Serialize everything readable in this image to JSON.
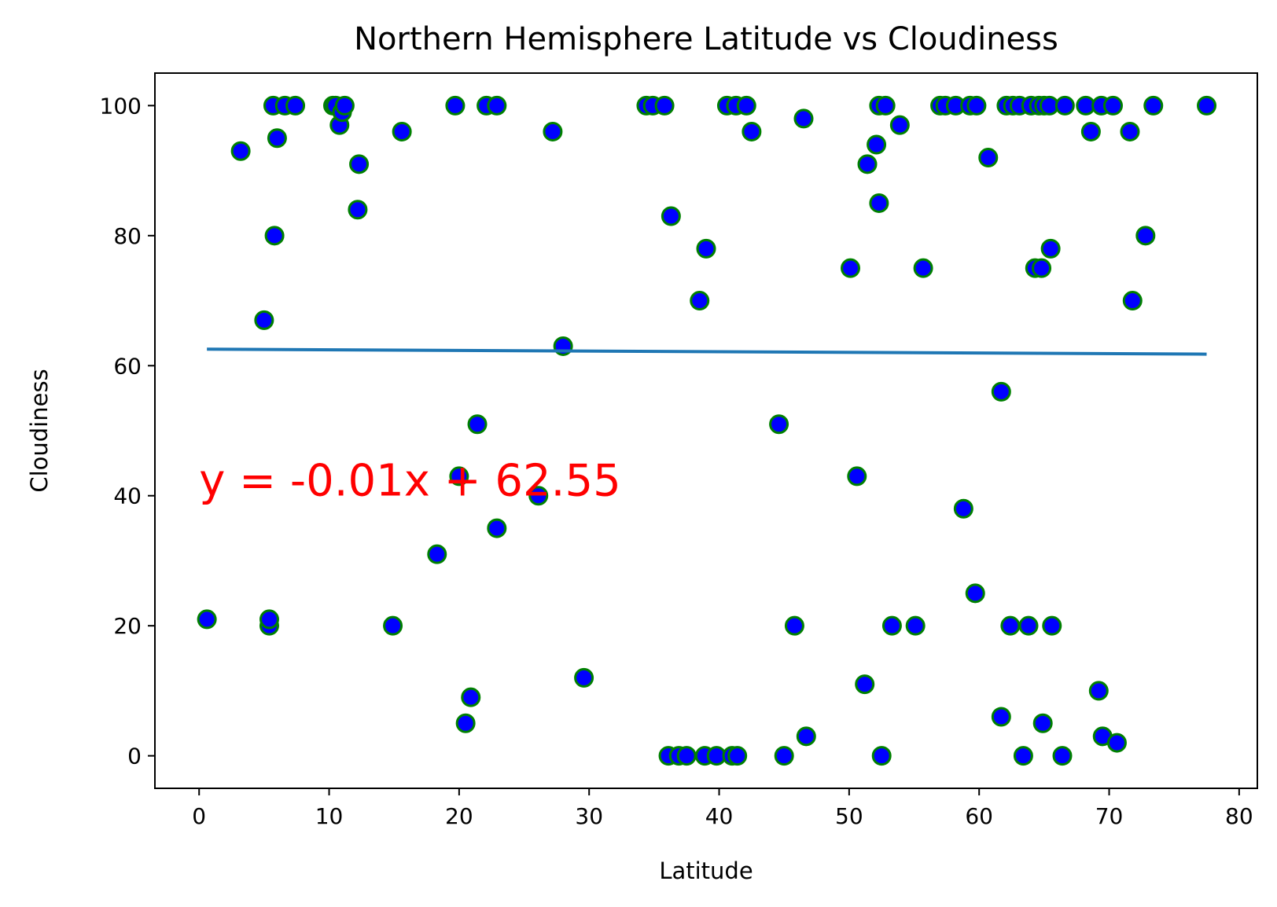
{
  "chart_data": {
    "type": "scatter",
    "title": "Northern Hemisphere Latitude vs Cloudiness",
    "xlabel": "Latitude",
    "ylabel": "Cloudiness",
    "xlim": [
      -3.4,
      81.4
    ],
    "ylim": [
      -5,
      105
    ],
    "xticks": [
      0,
      10,
      20,
      30,
      40,
      50,
      60,
      70,
      80
    ],
    "xtick_labels": [
      "0",
      "10",
      "20",
      "30",
      "40",
      "50",
      "60",
      "70",
      "80"
    ],
    "yticks": [
      0,
      20,
      40,
      60,
      80,
      100
    ],
    "ytick_labels": [
      "0",
      "20",
      "40",
      "60",
      "80",
      "100"
    ],
    "grid": false,
    "marker_face_color": "#0000ff",
    "marker_edge_color": "#008000",
    "line_color": "#1f77b4",
    "annotation_color": "#ff0000",
    "points": [
      [
        0.6,
        21
      ],
      [
        3.2,
        93
      ],
      [
        5.0,
        67
      ],
      [
        5.4,
        20
      ],
      [
        5.4,
        21
      ],
      [
        5.7,
        100
      ],
      [
        5.8,
        80
      ],
      [
        6.0,
        95
      ],
      [
        6.6,
        100
      ],
      [
        7.4,
        100
      ],
      [
        10.3,
        100
      ],
      [
        10.5,
        100
      ],
      [
        10.8,
        97
      ],
      [
        11.0,
        99
      ],
      [
        11.2,
        100
      ],
      [
        12.2,
        84
      ],
      [
        12.3,
        91
      ],
      [
        14.9,
        20
      ],
      [
        15.6,
        96
      ],
      [
        18.3,
        31
      ],
      [
        19.7,
        100
      ],
      [
        20.0,
        43
      ],
      [
        20.5,
        5
      ],
      [
        20.9,
        9
      ],
      [
        21.4,
        51
      ],
      [
        22.1,
        100
      ],
      [
        22.9,
        35
      ],
      [
        22.9,
        100
      ],
      [
        26.1,
        40
      ],
      [
        27.2,
        96
      ],
      [
        28.0,
        63
      ],
      [
        29.6,
        12
      ],
      [
        34.4,
        100
      ],
      [
        34.9,
        100
      ],
      [
        35.8,
        100
      ],
      [
        36.1,
        0
      ],
      [
        36.3,
        83
      ],
      [
        36.9,
        0
      ],
      [
        37.5,
        0
      ],
      [
        38.5,
        70
      ],
      [
        38.9,
        0
      ],
      [
        39.0,
        78
      ],
      [
        39.8,
        0
      ],
      [
        40.6,
        100
      ],
      [
        41.0,
        0
      ],
      [
        41.3,
        100
      ],
      [
        41.4,
        0
      ],
      [
        42.1,
        100
      ],
      [
        42.5,
        96
      ],
      [
        44.6,
        51
      ],
      [
        45.0,
        0
      ],
      [
        45.8,
        20
      ],
      [
        46.5,
        98
      ],
      [
        46.7,
        3
      ],
      [
        50.1,
        75
      ],
      [
        50.6,
        43
      ],
      [
        51.2,
        11
      ],
      [
        51.4,
        91
      ],
      [
        52.1,
        94
      ],
      [
        52.3,
        85
      ],
      [
        52.3,
        100
      ],
      [
        52.5,
        0
      ],
      [
        52.8,
        100
      ],
      [
        53.3,
        20
      ],
      [
        53.9,
        97
      ],
      [
        55.1,
        20
      ],
      [
        55.7,
        75
      ],
      [
        57.0,
        100
      ],
      [
        57.4,
        100
      ],
      [
        58.2,
        100
      ],
      [
        58.8,
        38
      ],
      [
        59.3,
        100
      ],
      [
        59.7,
        25
      ],
      [
        59.8,
        100
      ],
      [
        60.7,
        92
      ],
      [
        61.7,
        56
      ],
      [
        61.7,
        6
      ],
      [
        62.1,
        100
      ],
      [
        62.4,
        20
      ],
      [
        62.6,
        100
      ],
      [
        63.1,
        100
      ],
      [
        63.4,
        0
      ],
      [
        63.8,
        20
      ],
      [
        64.0,
        100
      ],
      [
        64.3,
        75
      ],
      [
        64.6,
        100
      ],
      [
        64.8,
        75
      ],
      [
        64.9,
        5
      ],
      [
        65.0,
        100
      ],
      [
        65.4,
        100
      ],
      [
        65.5,
        78
      ],
      [
        65.6,
        20
      ],
      [
        66.4,
        0
      ],
      [
        66.6,
        100
      ],
      [
        68.2,
        100
      ],
      [
        68.6,
        96
      ],
      [
        69.2,
        10
      ],
      [
        69.4,
        100
      ],
      [
        69.5,
        3
      ],
      [
        70.3,
        100
      ],
      [
        70.6,
        2
      ],
      [
        71.6,
        96
      ],
      [
        71.8,
        70
      ],
      [
        72.8,
        80
      ],
      [
        73.4,
        100
      ],
      [
        77.5,
        100
      ]
    ],
    "regression": {
      "slope": -0.01,
      "intercept": 62.55,
      "x_range": [
        0.6,
        77.5
      ],
      "equation": "y = -0.01x + 62.55",
      "label_position": [
        0,
        40
      ]
    }
  }
}
